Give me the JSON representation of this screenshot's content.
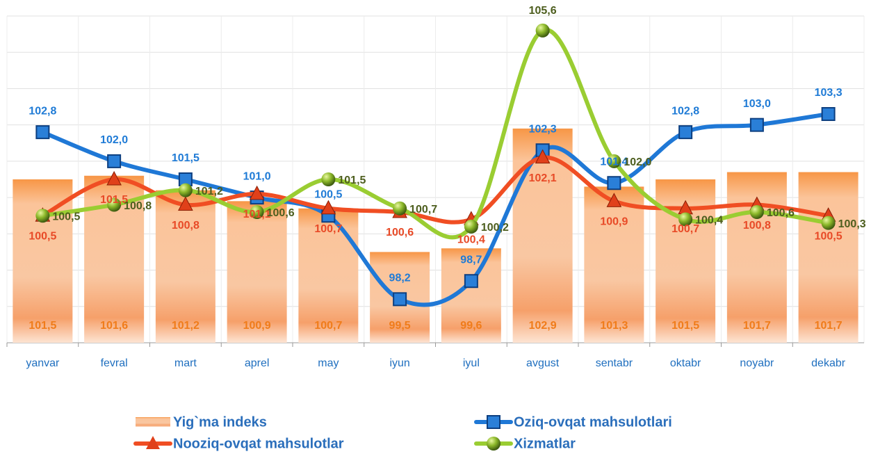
{
  "chart_data": {
    "type": "bar-line",
    "categories": [
      "yanvar",
      "fevral",
      "mart",
      "aprel",
      "may",
      "iyun",
      "iyul",
      "avgust",
      "sentabr",
      "oktabr",
      "noyabr",
      "dekabr"
    ],
    "ylim": [
      97,
      106
    ],
    "yticks": [
      97,
      98,
      99,
      100,
      101,
      102,
      103,
      104,
      105,
      106
    ],
    "grid": true,
    "series": [
      {
        "name": "Yig`ma indeks",
        "type": "bar",
        "color": "#f79646",
        "values": [
          101.5,
          101.6,
          101.2,
          100.9,
          100.7,
          99.5,
          99.6,
          102.9,
          101.3,
          101.5,
          101.7,
          101.7
        ],
        "value_labels": [
          "101,5",
          "101,6",
          "101,2",
          "100,9",
          "100,7",
          "99,5",
          "99,6",
          "102,9",
          "101,3",
          "101,5",
          "101,7",
          "101,7"
        ]
      },
      {
        "name": "Oziq-ovqat mahsulotlari",
        "type": "line",
        "marker": "square",
        "color": "#1f78d6",
        "values": [
          102.8,
          102.0,
          101.5,
          101.0,
          100.5,
          98.2,
          98.7,
          102.3,
          101.4,
          102.8,
          103.0,
          103.3
        ],
        "value_labels": [
          "102,8",
          "102,0",
          "101,5",
          "101,0",
          "100,5",
          "98,2",
          "98,7",
          "102,3",
          "101,4",
          "102,8",
          "103,0",
          "103,3"
        ]
      },
      {
        "name": "Nooziq-ovqat mahsulotlar",
        "type": "line",
        "marker": "triangle",
        "color": "#f04e23",
        "values": [
          100.5,
          101.5,
          100.8,
          101.1,
          100.7,
          100.6,
          100.4,
          102.1,
          100.9,
          100.7,
          100.8,
          100.5
        ],
        "value_labels": [
          "100,5",
          "101,5",
          "100,8",
          "101,1",
          "100,7",
          "100,6",
          "100,4",
          "102,1",
          "100,9",
          "100,7",
          "100,8",
          "100,5"
        ]
      },
      {
        "name": "Xizmatlar",
        "type": "line",
        "marker": "circle",
        "color": "#9acd32",
        "values": [
          100.5,
          100.8,
          101.2,
          100.6,
          101.5,
          100.7,
          100.2,
          105.6,
          102.0,
          100.4,
          100.6,
          100.3
        ],
        "value_labels": [
          "100,5",
          "100,8",
          "101,2",
          "100,6",
          "101,5",
          "100,7",
          "100,2",
          "105,6",
          "102,0",
          "100,4",
          "100,6",
          "100,3"
        ]
      }
    ]
  }
}
